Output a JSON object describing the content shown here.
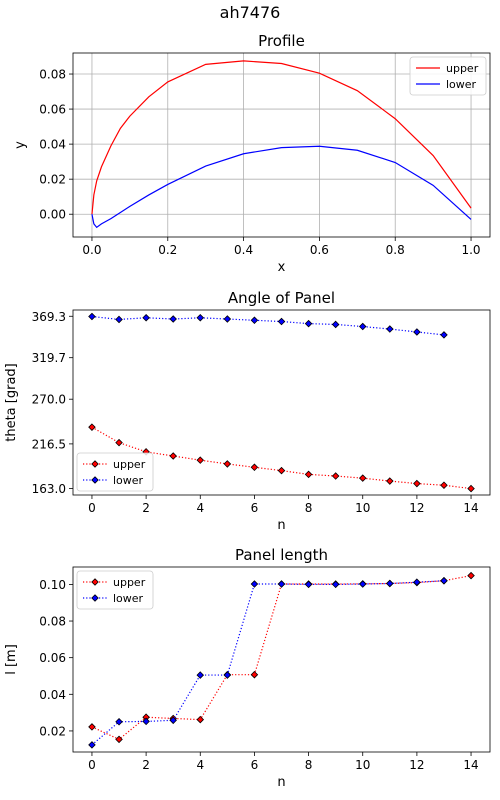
{
  "figure_title": "ah7476",
  "chart_data": [
    {
      "type": "line",
      "title": "Profile",
      "xlabel": "x",
      "ylabel": "y",
      "xlim": [
        -0.05,
        1.05
      ],
      "ylim": [
        -0.013,
        0.092
      ],
      "xticks": [
        0.0,
        0.2,
        0.4,
        0.6,
        0.8,
        1.0
      ],
      "xtick_labels": [
        "0.0",
        "0.2",
        "0.4",
        "0.6",
        "0.8",
        "1.0"
      ],
      "yticks": [
        0.0,
        0.02,
        0.04,
        0.06,
        0.08
      ],
      "ytick_labels": [
        "0.00",
        "0.02",
        "0.04",
        "0.06",
        "0.08"
      ],
      "grid": true,
      "legend": "upper right",
      "series": [
        {
          "name": "upper",
          "color": "#ff0000",
          "style": "solid",
          "marker": "none",
          "x": [
            0.0,
            0.005,
            0.0125,
            0.025,
            0.05,
            0.075,
            0.1,
            0.15,
            0.2,
            0.3,
            0.4,
            0.5,
            0.6,
            0.7,
            0.8,
            0.9,
            1.0
          ],
          "y": [
            0.0,
            0.011,
            0.019,
            0.027,
            0.039,
            0.049,
            0.056,
            0.067,
            0.0755,
            0.0855,
            0.0875,
            0.086,
            0.0805,
            0.0705,
            0.0545,
            0.0335,
            0.0035
          ]
        },
        {
          "name": "lower",
          "color": "#0000ff",
          "style": "solid",
          "marker": "none",
          "x": [
            0.0,
            0.005,
            0.0125,
            0.025,
            0.05,
            0.075,
            0.1,
            0.15,
            0.2,
            0.3,
            0.4,
            0.5,
            0.6,
            0.7,
            0.8,
            0.9,
            1.0
          ],
          "y": [
            0.0,
            -0.0055,
            -0.0075,
            -0.0055,
            -0.0025,
            0.001,
            0.0045,
            0.011,
            0.017,
            0.0275,
            0.0345,
            0.038,
            0.0388,
            0.0365,
            0.0295,
            0.0165,
            -0.003
          ]
        }
      ]
    },
    {
      "type": "line",
      "title": "Angle of Panel",
      "xlabel": "n",
      "ylabel": "theta [grad]",
      "xlim": [
        -0.7,
        14.7
      ],
      "ylim": [
        155.3,
        376.8
      ],
      "xticks": [
        0,
        2,
        4,
        6,
        8,
        10,
        12,
        14
      ],
      "xtick_labels": [
        "0",
        "2",
        "4",
        "6",
        "8",
        "10",
        "12",
        "14"
      ],
      "yticks": [
        163.0,
        216.5,
        270.0,
        319.7,
        369.3
      ],
      "ytick_labels": [
        "163.0",
        "216.5",
        "270.0",
        "319.7",
        "369.3"
      ],
      "grid": false,
      "legend": "lower left",
      "series": [
        {
          "name": "upper",
          "color": "#ff0000",
          "style": "dotted",
          "marker": "diamond",
          "x": [
            0,
            1,
            2,
            3,
            4,
            5,
            6,
            7,
            8,
            9,
            10,
            11,
            12,
            13,
            14
          ],
          "y": [
            236.5,
            218.0,
            207.0,
            202.0,
            197.0,
            192.5,
            188.5,
            184.5,
            180.0,
            178.0,
            175.5,
            172.0,
            169.0,
            167.0,
            163.0
          ]
        },
        {
          "name": "lower",
          "color": "#0000ff",
          "style": "dotted",
          "marker": "diamond",
          "x": [
            0,
            1,
            2,
            3,
            4,
            5,
            6,
            7,
            8,
            9,
            10,
            11,
            12,
            13
          ],
          "y": [
            369.0,
            365.5,
            367.5,
            366.0,
            367.5,
            366.0,
            364.5,
            363.0,
            360.5,
            359.5,
            357.0,
            354.0,
            350.5,
            347.0
          ]
        }
      ]
    },
    {
      "type": "line",
      "title": "Panel length",
      "xlabel": "n",
      "ylabel": "l [m]",
      "xlim": [
        -0.7,
        14.7
      ],
      "ylim": [
        0.0085,
        0.1095
      ],
      "xticks": [
        0,
        2,
        4,
        6,
        8,
        10,
        12,
        14
      ],
      "xtick_labels": [
        "0",
        "2",
        "4",
        "6",
        "8",
        "10",
        "12",
        "14"
      ],
      "yticks": [
        0.02,
        0.04,
        0.06,
        0.08,
        0.1
      ],
      "ytick_labels": [
        "0.02",
        "0.04",
        "0.06",
        "0.08",
        "0.10"
      ],
      "grid": false,
      "legend": "upper left",
      "series": [
        {
          "name": "upper",
          "color": "#ff0000",
          "style": "dotted",
          "marker": "diamond",
          "x": [
            0,
            1,
            2,
            3,
            4,
            5,
            6,
            7,
            8,
            9,
            10,
            11,
            12,
            13,
            14
          ],
          "y": [
            0.0222,
            0.0154,
            0.0275,
            0.0268,
            0.0262,
            0.0507,
            0.0507,
            0.1002,
            0.1002,
            0.1002,
            0.1003,
            0.1005,
            0.101,
            0.102,
            0.1048
          ]
        },
        {
          "name": "lower",
          "color": "#0000ff",
          "style": "dotted",
          "marker": "diamond",
          "x": [
            0,
            1,
            2,
            3,
            4,
            5,
            6,
            7,
            8,
            9,
            10,
            11,
            12,
            13
          ],
          "y": [
            0.0124,
            0.025,
            0.0252,
            0.0258,
            0.0505,
            0.0505,
            0.1002,
            0.1002,
            0.1,
            0.1,
            0.1002,
            0.1005,
            0.1012,
            0.102
          ]
        }
      ]
    }
  ]
}
